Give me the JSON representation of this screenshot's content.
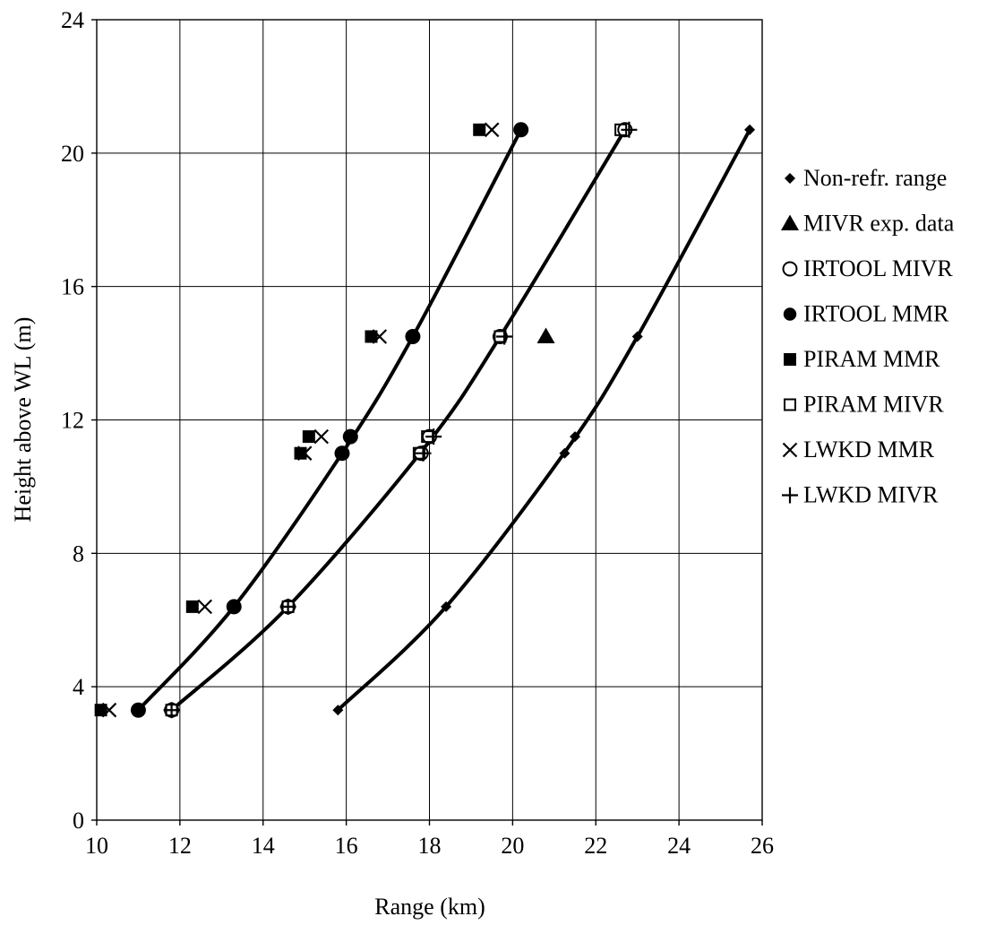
{
  "chart_data": {
    "type": "scatter",
    "xlabel": "Range (km)",
    "ylabel": "Height above WL (m)",
    "xlim": [
      10,
      26
    ],
    "ylim": [
      0,
      24
    ],
    "x_ticks": [
      10,
      12,
      14,
      16,
      18,
      20,
      22,
      24,
      26
    ],
    "y_ticks": [
      0,
      4,
      8,
      12,
      16,
      20,
      24
    ],
    "grid": true,
    "legend_position": "right",
    "series": [
      {
        "name": "Non-refr. range",
        "marker": "diamond",
        "color": "#000000",
        "points": [
          [
            15.8,
            3.3
          ],
          [
            18.4,
            6.4
          ],
          [
            21.25,
            11.0
          ],
          [
            21.5,
            11.5
          ],
          [
            23.0,
            14.5
          ],
          [
            25.7,
            20.7
          ]
        ]
      },
      {
        "name": "MIVR exp. data",
        "marker": "triangle",
        "color": "#000000",
        "points": [
          [
            20.8,
            14.5
          ]
        ]
      },
      {
        "name": "IRTOOL MIVR",
        "marker": "circle-open",
        "color": "#000000",
        "points": [
          [
            11.8,
            3.3
          ],
          [
            14.6,
            6.4
          ],
          [
            17.8,
            11.0
          ],
          [
            18.0,
            11.5
          ],
          [
            19.7,
            14.5
          ],
          [
            22.7,
            20.7
          ]
        ]
      },
      {
        "name": "IRTOOL MMR",
        "marker": "circle-filled",
        "color": "#000000",
        "points": [
          [
            11.0,
            3.3
          ],
          [
            13.3,
            6.4
          ],
          [
            15.9,
            11.0
          ],
          [
            16.1,
            11.5
          ],
          [
            17.6,
            14.5
          ],
          [
            20.2,
            20.7
          ]
        ]
      },
      {
        "name": "PIRAM MMR",
        "marker": "square-filled",
        "color": "#000000",
        "points": [
          [
            10.1,
            3.3
          ],
          [
            12.3,
            6.4
          ],
          [
            14.9,
            11.0
          ],
          [
            15.1,
            11.5
          ],
          [
            16.6,
            14.5
          ],
          [
            19.2,
            20.7
          ]
        ]
      },
      {
        "name": "PIRAM MIVR",
        "marker": "square-open",
        "color": "#000000",
        "points": [
          [
            11.8,
            3.3
          ],
          [
            14.6,
            6.4
          ],
          [
            17.75,
            11.0
          ],
          [
            17.95,
            11.5
          ],
          [
            19.7,
            14.5
          ],
          [
            22.6,
            20.7
          ]
        ]
      },
      {
        "name": "LWKD MMR",
        "marker": "x",
        "color": "#000000",
        "points": [
          [
            10.3,
            3.3
          ],
          [
            12.6,
            6.4
          ],
          [
            15.0,
            11.0
          ],
          [
            15.4,
            11.5
          ],
          [
            16.8,
            14.5
          ],
          [
            19.5,
            20.7
          ]
        ]
      },
      {
        "name": "LWKD MIVR",
        "marker": "plus",
        "color": "#000000",
        "points": [
          [
            11.8,
            3.3
          ],
          [
            14.6,
            6.4
          ],
          [
            17.85,
            11.0
          ],
          [
            18.1,
            11.5
          ],
          [
            19.8,
            14.5
          ],
          [
            22.8,
            20.7
          ]
        ]
      }
    ],
    "fit_curves": [
      {
        "points": [
          [
            11.0,
            3.3
          ],
          [
            13.3,
            6.4
          ],
          [
            15.9,
            11.0
          ],
          [
            17.6,
            14.5
          ],
          [
            20.2,
            20.7
          ]
        ]
      },
      {
        "points": [
          [
            11.8,
            3.3
          ],
          [
            14.6,
            6.4
          ],
          [
            17.9,
            11.2
          ],
          [
            19.7,
            14.5
          ],
          [
            22.7,
            20.7
          ]
        ]
      },
      {
        "points": [
          [
            15.8,
            3.3
          ],
          [
            18.4,
            6.4
          ],
          [
            21.35,
            11.2
          ],
          [
            23.0,
            14.5
          ],
          [
            25.7,
            20.7
          ]
        ]
      }
    ]
  }
}
